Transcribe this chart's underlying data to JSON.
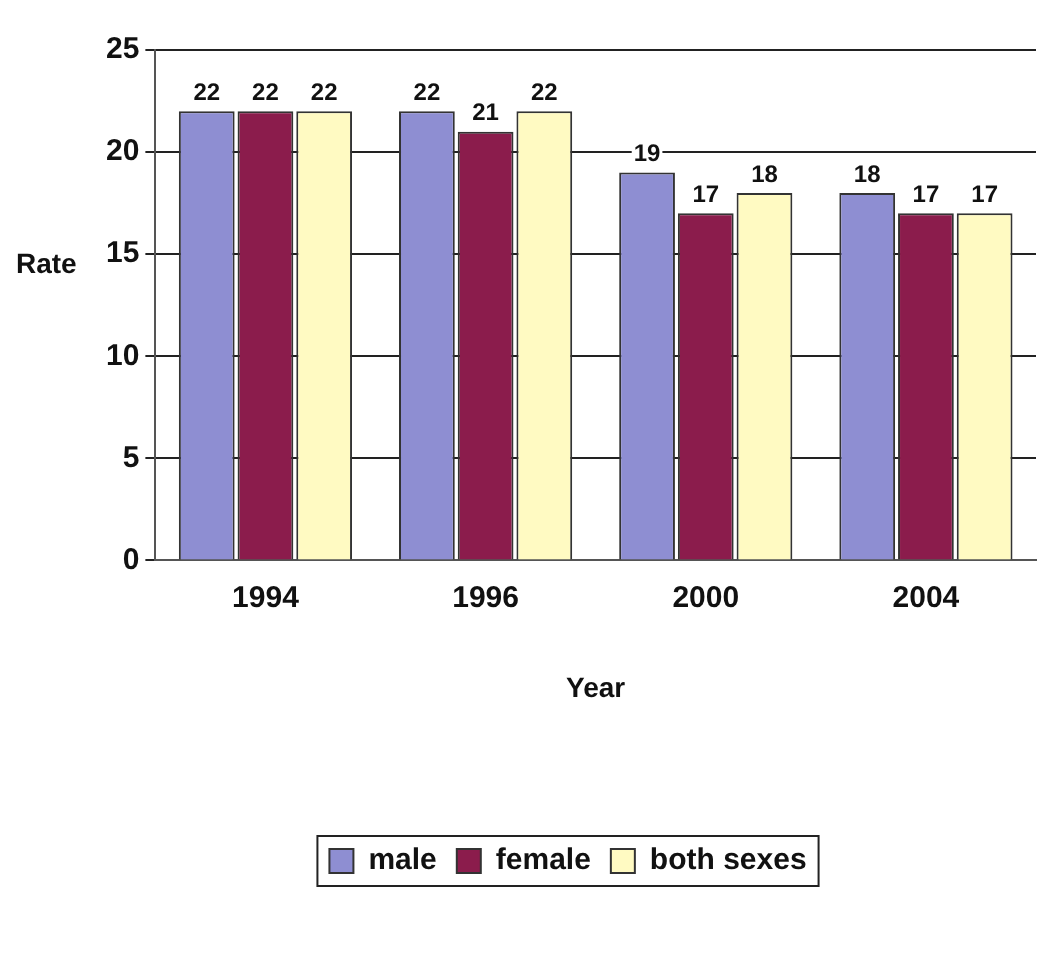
{
  "chart_data": {
    "type": "bar",
    "xlabel": "Year",
    "ylabel": "Rate",
    "categories": [
      "1994",
      "1996",
      "2000",
      "2004"
    ],
    "series": [
      {
        "name": "male",
        "color": "#8e8ed2",
        "values": [
          22,
          22,
          19,
          18
        ]
      },
      {
        "name": "female",
        "color": "#8b1c4c",
        "values": [
          22,
          21,
          17,
          17
        ]
      },
      {
        "name": "both sexes",
        "color": "#fffac2",
        "values": [
          22,
          22,
          18,
          17
        ]
      }
    ],
    "ylim": [
      0,
      25
    ],
    "yticks": [
      0,
      5,
      10,
      15,
      20,
      25
    ],
    "grid": "y",
    "legend": "bottom",
    "data_labels": true
  }
}
